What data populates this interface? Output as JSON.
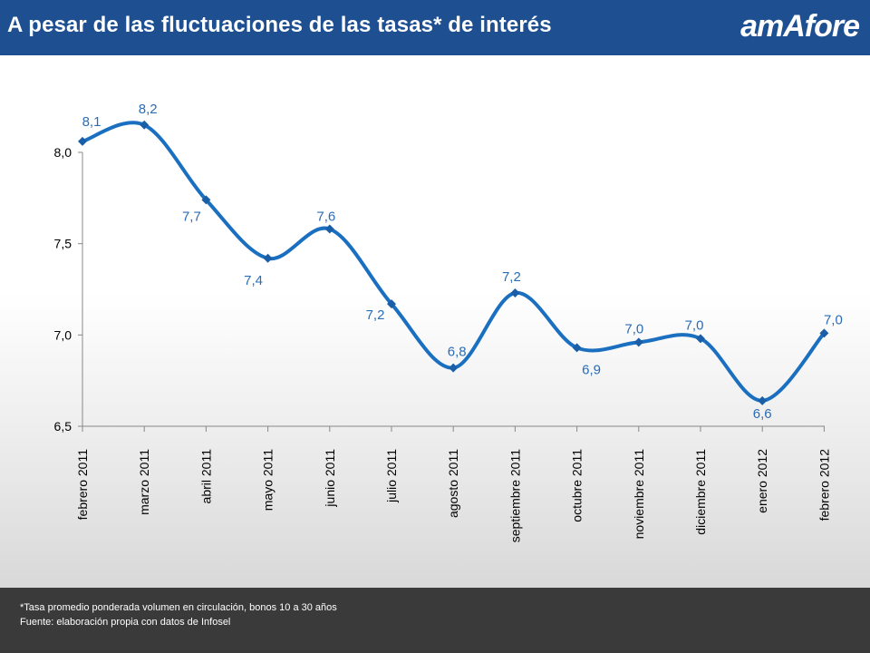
{
  "header": {
    "title": "A pesar de las fluctuaciones de las tasas* de interés",
    "logo_text": "amAfore"
  },
  "colors": {
    "header_bg": "#1d4f91",
    "line": "#1a6fc0",
    "data_label": "#2a6cb5",
    "footer_bg": "#3a3a3a"
  },
  "chart_data": {
    "type": "line",
    "title": "",
    "xlabel": "",
    "ylabel": "",
    "categories": [
      "febrero 2011",
      "marzo 2011",
      "abril 2011",
      "mayo 2011",
      "junio 2011",
      "julio  2011",
      "agosto 2011",
      "septiembre 2011",
      "octubre 2011",
      "noviembre 2011",
      "diciembre  2011",
      "enero 2012",
      "febrero 2012"
    ],
    "values": [
      8.06,
      8.15,
      7.74,
      7.42,
      7.58,
      7.17,
      6.82,
      7.23,
      6.93,
      6.96,
      6.98,
      6.64,
      7.01
    ],
    "data_labels": [
      "8,1",
      "8,2",
      "7,7",
      "7,4",
      "7,6",
      "7,2",
      "6,8",
      "7,2",
      "6,9",
      "7,0",
      "7,0",
      "6,6",
      "7,0"
    ],
    "ylim": [
      6.5,
      8.0
    ],
    "yticks": [
      6.5,
      7.0,
      7.5,
      8.0
    ],
    "ytick_labels": [
      "6,5",
      "7,0",
      "7,5",
      "8,0"
    ],
    "grid": false,
    "smooth": true,
    "marker": "diamond"
  },
  "footer": {
    "note": "*Tasa promedio ponderada volumen en circulación, bonos 10 a 30 años",
    "source": "Fuente: elaboración propia con datos de Infosel"
  }
}
